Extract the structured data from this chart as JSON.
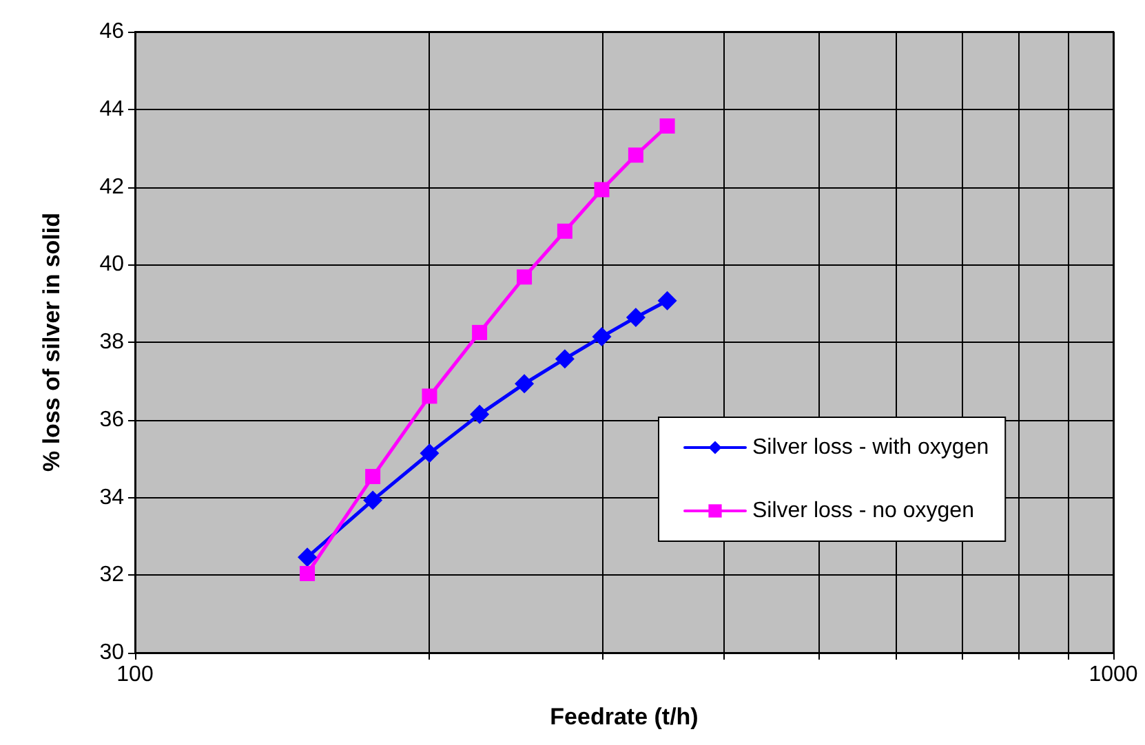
{
  "chart_data": {
    "type": "line",
    "xlabel": "Feedrate (t/h)",
    "ylabel": "% loss of silver in solid",
    "x": [
      150,
      175,
      200,
      225,
      250,
      275,
      300,
      325,
      350
    ],
    "series": [
      {
        "name": "Silver loss - with oxygen",
        "color": "#0000ff",
        "marker": "diamond",
        "values": [
          32.46,
          33.93,
          35.14,
          36.14,
          36.93,
          37.57,
          38.14,
          38.64,
          39.07
        ]
      },
      {
        "name": "Silver loss - no oxygen",
        "color": "#ff00ff",
        "marker": "square",
        "values": [
          32.04,
          34.54,
          36.61,
          38.25,
          39.68,
          40.86,
          41.93,
          42.82,
          43.57
        ]
      }
    ],
    "log": "x",
    "xlim": [
      100,
      1000
    ],
    "xticks": [
      100,
      {
        "value": 200,
        "label": null
      },
      {
        "value": 300,
        "label": null
      },
      {
        "value": 400,
        "label": null
      },
      {
        "value": 500,
        "label": null
      },
      {
        "value": 600,
        "label": null
      },
      {
        "value": 700,
        "label": null
      },
      {
        "value": 800,
        "label": null
      },
      {
        "value": 900,
        "label": null
      },
      1000
    ],
    "ylim": [
      30,
      46
    ],
    "yticks": [
      30,
      32,
      34,
      36,
      38,
      40,
      42,
      44,
      46
    ],
    "grid": true,
    "legend": "right",
    "line_style": "solid"
  }
}
